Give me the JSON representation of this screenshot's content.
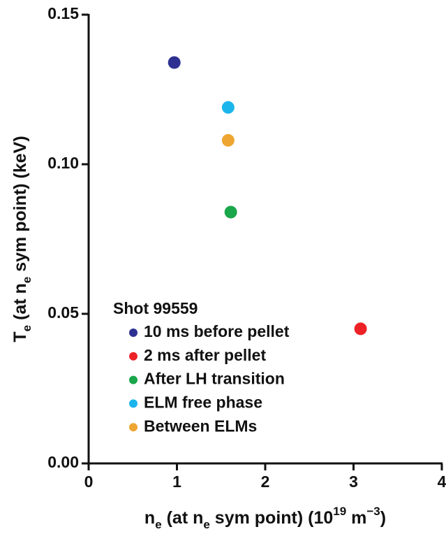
{
  "chart_data": {
    "type": "scatter",
    "x_label": [
      {
        "text": "n"
      },
      {
        "text": "e",
        "shift": "sub"
      },
      {
        "text": " (at n"
      },
      {
        "text": "e",
        "shift": "sub"
      },
      {
        "text": " sym point) (10"
      },
      {
        "text": "19",
        "shift": "super"
      },
      {
        "text": " m"
      },
      {
        "text": "−3",
        "shift": "super"
      },
      {
        "text": ")"
      }
    ],
    "y_label": [
      {
        "text": "T"
      },
      {
        "text": "e",
        "shift": "sub"
      },
      {
        "text": " (at n"
      },
      {
        "text": "e",
        "shift": "sub"
      },
      {
        "text": " sym point) (keV)"
      }
    ],
    "legend_title": "Shot 99559",
    "series": [
      {
        "name": "10 ms before pellet",
        "color": "#2e3192",
        "x": [
          0.97
        ],
        "values": [
          0.134
        ]
      },
      {
        "name": "2 ms after pellet",
        "color": "#ec2227",
        "x": [
          3.08
        ],
        "values": [
          0.045
        ]
      },
      {
        "name": "After LH transition",
        "color": "#1aa64a",
        "x": [
          1.61
        ],
        "values": [
          0.084
        ]
      },
      {
        "name": "ELM free phase",
        "color": "#1bb5ec",
        "x": [
          1.58
        ],
        "values": [
          0.119
        ]
      },
      {
        "name": "Between ELMs",
        "color": "#eea531",
        "x": [
          1.58
        ],
        "values": [
          0.108
        ]
      }
    ],
    "xlim": [
      0,
      4
    ],
    "xticks": [
      0,
      1,
      2,
      3,
      4
    ],
    "ylim": [
      0,
      0.15
    ],
    "yticks": [
      {
        "value": 0,
        "label": "0.00"
      },
      {
        "value": 0.05,
        "label": "0.05"
      },
      {
        "value": 0.1,
        "label": "0.10"
      },
      {
        "value": 0.15,
        "label": "0.15"
      }
    ],
    "grid": false
  }
}
